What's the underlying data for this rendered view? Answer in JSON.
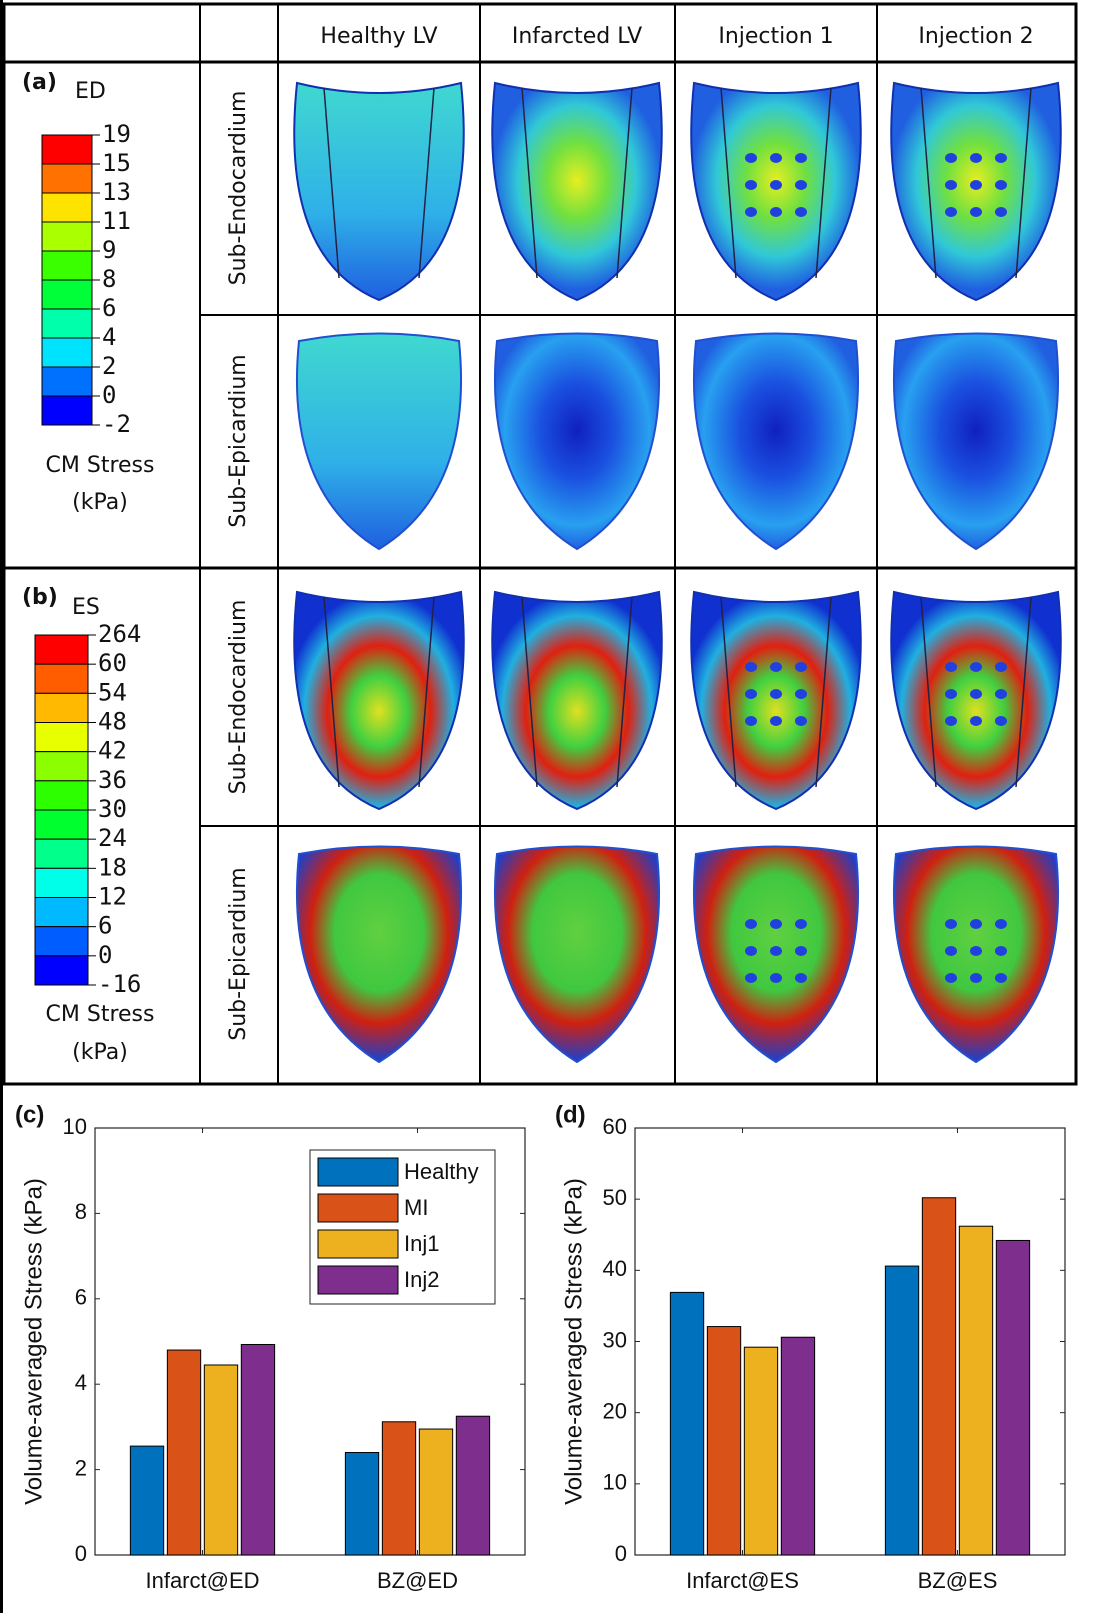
{
  "table": {
    "columns": [
      "Healthy LV",
      "Infarcted LV",
      "Injection 1",
      "Injection 2"
    ],
    "panels": [
      {
        "label": "(a)",
        "phase": "ED",
        "colorbar_ticks": [
          19,
          15,
          13,
          11,
          9,
          8,
          6,
          4,
          2,
          0,
          -2
        ],
        "colorbar_title": "CM Stress",
        "colorbar_unit": "(kPa)",
        "rows": [
          "Sub-Endocardium",
          "Sub-Epicardium"
        ]
      },
      {
        "label": "(b)",
        "phase": "ES",
        "colorbar_ticks": [
          264,
          60,
          54,
          48,
          42,
          36,
          30,
          24,
          18,
          12,
          6,
          0,
          -16
        ],
        "colorbar_title": "CM Stress",
        "colorbar_unit": "(kPa)",
        "rows": [
          "Sub-Endocardium",
          "Sub-Epicardium"
        ]
      }
    ]
  },
  "chart_data": [
    {
      "type": "bar",
      "panel_label": "(c)",
      "ylabel": "Volume-averaged Stress (kPa)",
      "categories": [
        "Infarct@ED",
        "BZ@ED"
      ],
      "series": [
        {
          "name": "Healthy",
          "color": "#0072bd",
          "values": [
            2.55,
            2.4
          ]
        },
        {
          "name": "MI",
          "color": "#d95319",
          "values": [
            4.8,
            3.12
          ]
        },
        {
          "name": "Inj1",
          "color": "#edb120",
          "values": [
            4.45,
            2.95
          ]
        },
        {
          "name": "Inj2",
          "color": "#7e2f8e",
          "values": [
            4.93,
            3.25
          ]
        }
      ],
      "ylim": [
        0,
        10
      ],
      "yticks": [
        0,
        2,
        4,
        6,
        8,
        10
      ],
      "legend": "upper right"
    },
    {
      "type": "bar",
      "panel_label": "(d)",
      "ylabel": "Volume-averaged Stress (kPa)",
      "categories": [
        "Infarct@ES",
        "BZ@ES"
      ],
      "series": [
        {
          "color": "#0072bd",
          "values": [
            36.9,
            40.6
          ]
        },
        {
          "color": "#d95319",
          "values": [
            32.1,
            50.2
          ]
        },
        {
          "color": "#edb120",
          "values": [
            29.2,
            46.2
          ]
        },
        {
          "color": "#7e2f8e",
          "values": [
            30.6,
            44.2
          ]
        }
      ],
      "ylim": [
        0,
        60
      ],
      "yticks": [
        0,
        10,
        20,
        30,
        40,
        50,
        60
      ]
    }
  ]
}
